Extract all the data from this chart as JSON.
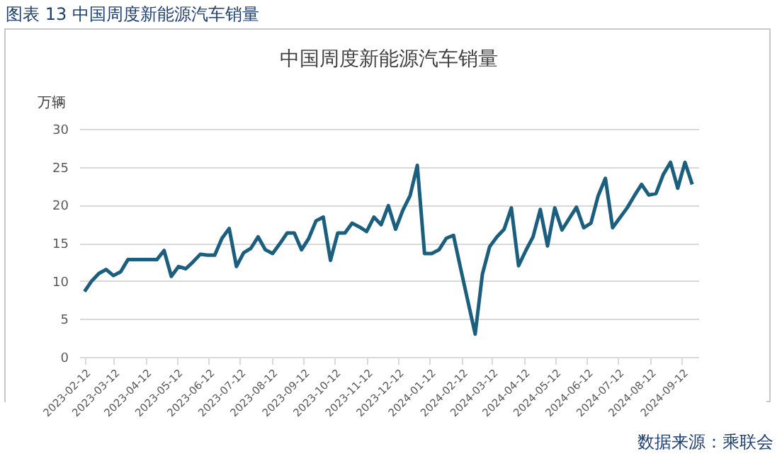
{
  "chart_data": {
    "type": "line",
    "title": "中国周度新能源汽车销量",
    "ylabel": "万辆",
    "annotations": [
      "图表 13 中国周度新能源汽车销量",
      "数据来源：乘联会"
    ],
    "x": [
      "2023-02-12",
      "2023-02-19",
      "2023-02-26",
      "2023-03-05",
      "2023-03-12",
      "2023-03-19",
      "2023-03-26",
      "2023-04-02",
      "2023-04-09",
      "2023-04-16",
      "2023-04-23",
      "2023-04-30",
      "2023-05-07",
      "2023-05-14",
      "2023-05-21",
      "2023-05-28",
      "2023-06-04",
      "2023-06-11",
      "2023-06-18",
      "2023-06-25",
      "2023-07-02",
      "2023-07-09",
      "2023-07-16",
      "2023-07-23",
      "2023-07-30",
      "2023-08-06",
      "2023-08-13",
      "2023-08-20",
      "2023-08-27",
      "2023-09-03",
      "2023-09-10",
      "2023-09-17",
      "2023-09-24",
      "2023-10-01",
      "2023-10-08",
      "2023-10-15",
      "2023-10-22",
      "2023-10-29",
      "2023-11-05",
      "2023-11-12",
      "2023-11-19",
      "2023-11-26",
      "2023-12-03",
      "2023-12-10",
      "2023-12-17",
      "2023-12-24",
      "2023-12-31",
      "2024-01-07",
      "2024-01-14",
      "2024-01-21",
      "2024-01-28",
      "2024-02-04",
      "2024-02-11",
      "2024-02-18",
      "2024-02-25",
      "2024-03-03",
      "2024-03-10",
      "2024-03-17",
      "2024-03-24",
      "2024-03-31",
      "2024-04-07",
      "2024-04-14",
      "2024-04-21",
      "2024-04-28",
      "2024-05-05",
      "2024-05-12",
      "2024-05-19",
      "2024-05-26",
      "2024-06-02",
      "2024-06-09",
      "2024-06-16",
      "2024-06-23",
      "2024-06-30",
      "2024-07-07",
      "2024-07-14",
      "2024-07-21",
      "2024-07-28",
      "2024-08-04",
      "2024-08-11",
      "2024-08-18",
      "2024-08-25",
      "2024-09-01",
      "2024-09-08",
      "2024-09-15",
      "2024-09-22"
    ],
    "series": [
      {
        "color": "#1b5e7e",
        "values": [
          8.6,
          10.0,
          11.0,
          11.5,
          10.7,
          11.2,
          12.8,
          12.8,
          12.8,
          12.8,
          12.8,
          14.0,
          10.6,
          11.9,
          11.6,
          12.5,
          13.5,
          13.4,
          13.4,
          15.6,
          16.9,
          11.9,
          13.7,
          14.3,
          15.8,
          14.1,
          13.6,
          14.9,
          16.3,
          16.3,
          14.1,
          15.6,
          17.9,
          18.4,
          12.7,
          16.3,
          16.3,
          17.6,
          17.1,
          16.5,
          18.4,
          17.4,
          19.9,
          16.8,
          19.3,
          21.2,
          25.2,
          13.6,
          13.6,
          14.1,
          15.6,
          16.0,
          11.6,
          7.3,
          3.0,
          10.9,
          14.5,
          15.8,
          16.8,
          19.6,
          12.0,
          14.0,
          15.8,
          19.4,
          14.6,
          19.6,
          16.7,
          18.2,
          19.7,
          17.0,
          17.6,
          21.2,
          23.5,
          17.0,
          18.3,
          19.6,
          21.2,
          22.7,
          21.3,
          21.5,
          24.0,
          25.6,
          22.2,
          25.6,
          22.7
        ]
      }
    ],
    "xlim": [
      "2023-02-07",
      "2024-09-28"
    ],
    "xticks": [
      "2023-02-12",
      "2023-03-12",
      "2023-04-12",
      "2023-05-12",
      "2023-06-12",
      "2023-07-12",
      "2023-08-12",
      "2023-09-12",
      "2023-10-12",
      "2023-11-12",
      "2023-12-12",
      "2024-01-12",
      "2024-02-12",
      "2024-03-12",
      "2024-04-12",
      "2024-05-12",
      "2024-06-12",
      "2024-07-12",
      "2024-08-12",
      "2024-09-12"
    ],
    "ylim": [
      0,
      30
    ],
    "yticks": [
      0,
      5,
      10,
      15,
      20,
      25,
      30
    ],
    "grid": "y",
    "marker": "none",
    "line_style": "solid"
  }
}
